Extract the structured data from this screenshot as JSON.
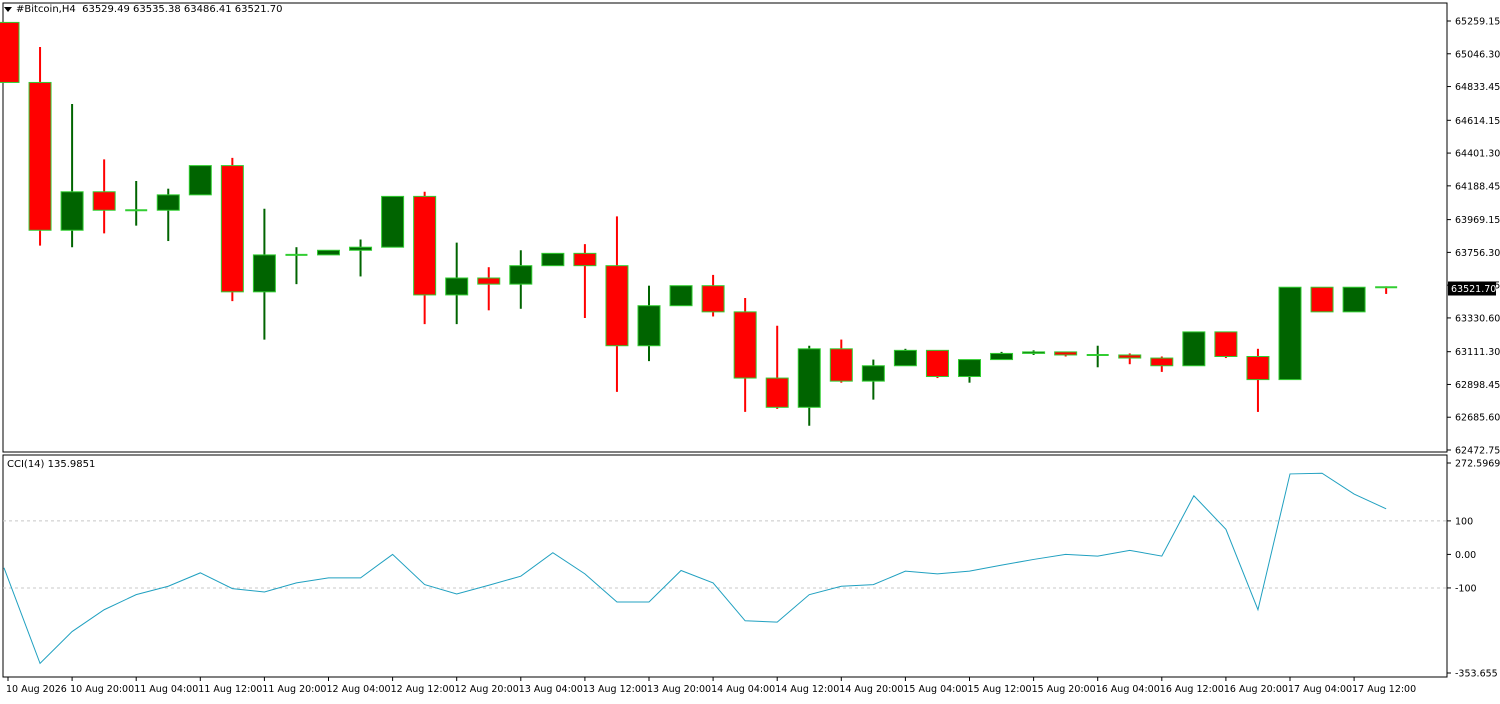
{
  "header": {
    "symbol": "#Bitcoin,H4",
    "ohlc_text": "63529.49 63535.38 63486.41 63521.70"
  },
  "cci_header": {
    "label": "CCI(14)",
    "value": "135.9851"
  },
  "colors": {
    "bull_body": "#006400",
    "bear_body": "#ff0000",
    "candle_border": "#32cd32",
    "wick_bull": "#006400",
    "wick_bear": "#ff0000",
    "cci_line": "#20a0c0",
    "level_line": "#c8c8c8",
    "price_tag_bg": "#000000",
    "price_tag_text": "#ffffff"
  },
  "chart_data": [
    {
      "type": "candlestick",
      "title": "#Bitcoin,H4",
      "ylim": [
        62472.75,
        65259.15
      ],
      "y_ticks": [
        "65259.15",
        "65046.30",
        "64833.45",
        "64614.15",
        "64401.30",
        "64188.45",
        "63969.15",
        "63756.30",
        "63543.45",
        "63330.60",
        "63111.30",
        "62898.45",
        "62685.60",
        "62472.75"
      ],
      "current_price": "63521.70",
      "x_ticks": [
        "10 Aug 2026",
        "10 Aug 20:00",
        "11 Aug 04:00",
        "11 Aug 12:00",
        "11 Aug 20:00",
        "12 Aug 04:00",
        "12 Aug 12:00",
        "12 Aug 20:00",
        "13 Aug 04:00",
        "13 Aug 12:00",
        "13 Aug 20:00",
        "14 Aug 04:00",
        "14 Aug 12:00",
        "14 Aug 20:00",
        "15 Aug 04:00",
        "15 Aug 12:00",
        "15 Aug 20:00",
        "16 Aug 04:00",
        "16 Aug 12:00",
        "16 Aug 20:00",
        "17 Aug 04:00",
        "17 Aug 12:00"
      ],
      "candles": [
        {
          "o": 65250,
          "h": 65250,
          "l": 64860,
          "c": 64860
        },
        {
          "o": 64860,
          "h": 65090,
          "l": 63800,
          "c": 63900
        },
        {
          "o": 63900,
          "h": 64720,
          "l": 63790,
          "c": 64150
        },
        {
          "o": 64150,
          "h": 64360,
          "l": 63880,
          "c": 64030
        },
        {
          "o": 64030,
          "h": 64220,
          "l": 63930,
          "c": 64030
        },
        {
          "o": 64030,
          "h": 64170,
          "l": 63830,
          "c": 64130
        },
        {
          "o": 64130,
          "h": 64320,
          "l": 64130,
          "c": 64320
        },
        {
          "o": 64320,
          "h": 64370,
          "l": 63440,
          "c": 63500
        },
        {
          "o": 63500,
          "h": 64040,
          "l": 63190,
          "c": 63740
        },
        {
          "o": 63740,
          "h": 63790,
          "l": 63550,
          "c": 63740
        },
        {
          "o": 63740,
          "h": 63770,
          "l": 63740,
          "c": 63770
        },
        {
          "o": 63770,
          "h": 63840,
          "l": 63600,
          "c": 63790
        },
        {
          "o": 63790,
          "h": 64120,
          "l": 63790,
          "c": 64120
        },
        {
          "o": 64120,
          "h": 64150,
          "l": 63290,
          "c": 63480
        },
        {
          "o": 63480,
          "h": 63820,
          "l": 63290,
          "c": 63590
        },
        {
          "o": 63590,
          "h": 63660,
          "l": 63380,
          "c": 63550
        },
        {
          "o": 63550,
          "h": 63770,
          "l": 63390,
          "c": 63670
        },
        {
          "o": 63670,
          "h": 63750,
          "l": 63670,
          "c": 63750
        },
        {
          "o": 63750,
          "h": 63810,
          "l": 63330,
          "c": 63670
        },
        {
          "o": 63670,
          "h": 63990,
          "l": 62850,
          "c": 63150
        },
        {
          "o": 63150,
          "h": 63540,
          "l": 63050,
          "c": 63410
        },
        {
          "o": 63410,
          "h": 63540,
          "l": 63410,
          "c": 63540
        },
        {
          "o": 63540,
          "h": 63610,
          "l": 63340,
          "c": 63370
        },
        {
          "o": 63370,
          "h": 63460,
          "l": 62720,
          "c": 62940
        },
        {
          "o": 62940,
          "h": 63280,
          "l": 62740,
          "c": 62750
        },
        {
          "o": 62750,
          "h": 63150,
          "l": 62630,
          "c": 63130
        },
        {
          "o": 63130,
          "h": 63190,
          "l": 62910,
          "c": 62920
        },
        {
          "o": 62920,
          "h": 63060,
          "l": 62800,
          "c": 63020
        },
        {
          "o": 63020,
          "h": 63130,
          "l": 63020,
          "c": 63120
        },
        {
          "o": 63120,
          "h": 63120,
          "l": 62940,
          "c": 62950
        },
        {
          "o": 62950,
          "h": 63060,
          "l": 62910,
          "c": 63060
        },
        {
          "o": 63060,
          "h": 63110,
          "l": 63060,
          "c": 63100
        },
        {
          "o": 63100,
          "h": 63120,
          "l": 63090,
          "c": 63110
        },
        {
          "o": 63110,
          "h": 63110,
          "l": 63080,
          "c": 63090
        },
        {
          "o": 63090,
          "h": 63150,
          "l": 63010,
          "c": 63090
        },
        {
          "o": 63090,
          "h": 63100,
          "l": 63030,
          "c": 63070
        },
        {
          "o": 63070,
          "h": 63080,
          "l": 62980,
          "c": 63020
        },
        {
          "o": 63020,
          "h": 63240,
          "l": 63020,
          "c": 63240
        },
        {
          "o": 63240,
          "h": 63240,
          "l": 63070,
          "c": 63080
        },
        {
          "o": 63080,
          "h": 63130,
          "l": 62720,
          "c": 62930
        },
        {
          "o": 62930,
          "h": 63530,
          "l": 62930,
          "c": 63530
        },
        {
          "o": 63530,
          "h": 63530,
          "l": 63370,
          "c": 63370
        },
        {
          "o": 63370,
          "h": 63530,
          "l": 63370,
          "c": 63530
        },
        {
          "o": 63530,
          "h": 63535.38,
          "l": 63486.41,
          "c": 63521.7
        }
      ]
    },
    {
      "type": "line",
      "title": "CCI(14) 135.9851",
      "ylim": [
        -353.655,
        272.5969
      ],
      "y_ticks": [
        "272.5969",
        "100",
        "0.00",
        "-100",
        "-353.655"
      ],
      "levels": [
        100,
        -100
      ],
      "series": [
        {
          "name": "CCI(14)",
          "values": [
            -40,
            -325,
            -230,
            -165,
            -120,
            -95,
            -55,
            -102,
            -112,
            -85,
            -70,
            -70,
            0,
            -90,
            -118,
            -92,
            -65,
            5,
            -58,
            -142,
            -142,
            -48,
            -85,
            -198,
            -202,
            -120,
            -95,
            -90,
            -50,
            -58,
            -50,
            -32,
            -15,
            0,
            -5,
            12,
            -5,
            175,
            75,
            -165,
            240,
            242,
            180,
            136
          ]
        }
      ]
    }
  ]
}
